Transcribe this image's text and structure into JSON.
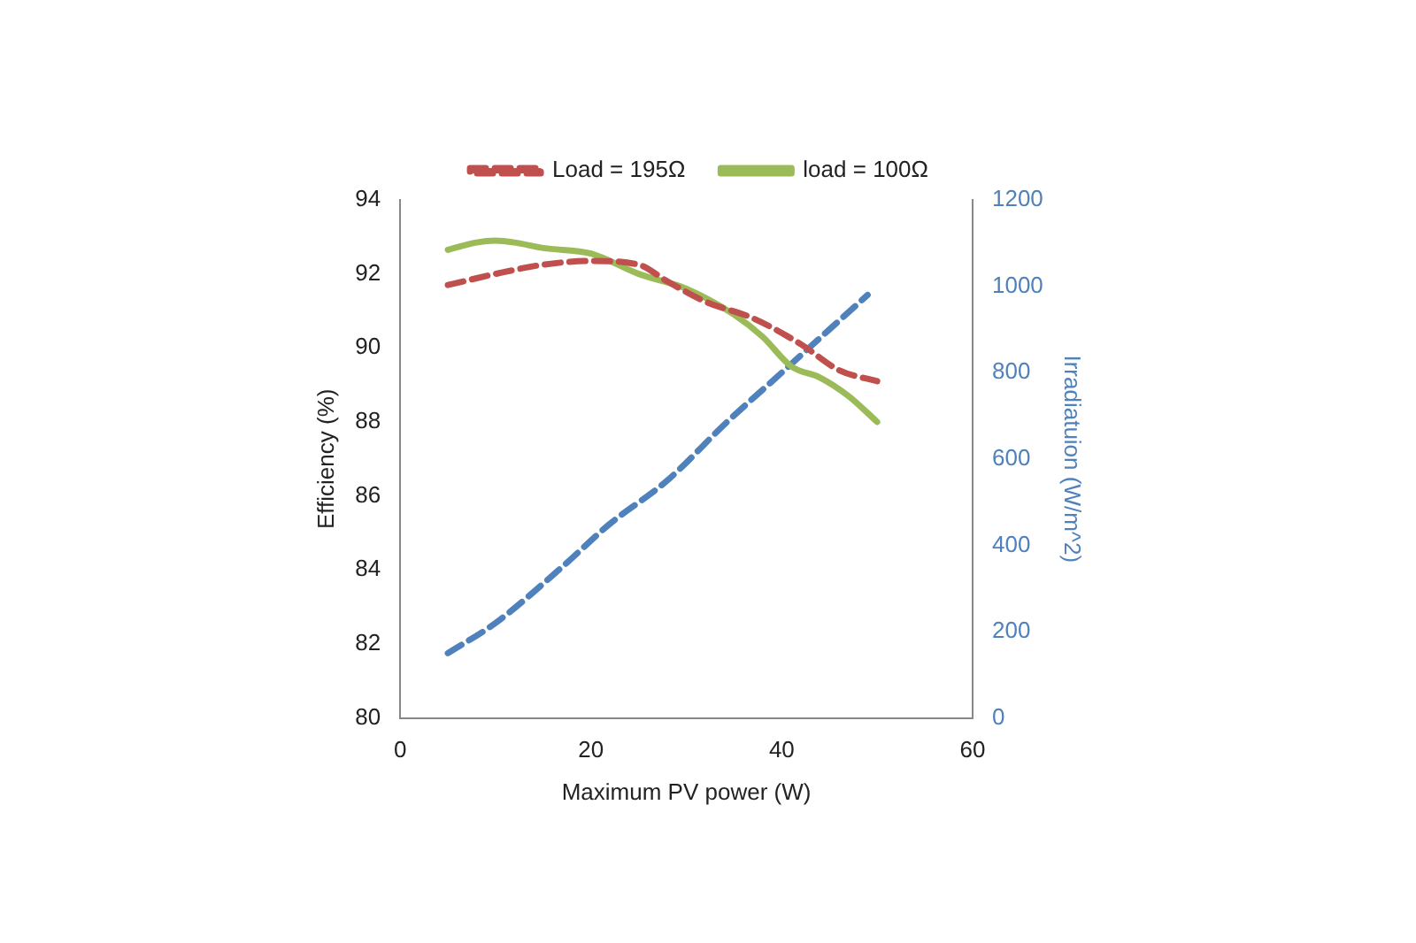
{
  "chart_data": {
    "type": "line",
    "xlabel": "Maximum PV power (W)",
    "ylabel": "Efficiency (%)",
    "y2label": "Irradiatuion (W/m^2)",
    "xlim": [
      0,
      60
    ],
    "xticks": [
      0,
      20,
      40,
      60
    ],
    "ylim": [
      80,
      94
    ],
    "yticks": [
      80,
      82,
      84,
      86,
      88,
      90,
      92,
      94
    ],
    "y2lim": [
      0,
      1200
    ],
    "y2ticks": [
      0,
      200,
      400,
      600,
      800,
      1000,
      1200
    ],
    "grid": false,
    "legend": "top",
    "marker": "none",
    "series": [
      {
        "name": "Load = 195Ω",
        "color": "#c0504d",
        "line_style": "dashed",
        "x": [
          5,
          10,
          15,
          20,
          25,
          28,
          32,
          37,
          42,
          46,
          50
        ],
        "values": [
          91.7,
          92.0,
          92.25,
          92.35,
          92.25,
          91.8,
          91.25,
          90.8,
          90.1,
          89.4,
          89.1
        ]
      },
      {
        "name": "load = 100Ω",
        "color": "#9bbb59",
        "line_style": "solid",
        "x": [
          5,
          8,
          10,
          12,
          15,
          20,
          25,
          30,
          35,
          38,
          41,
          44,
          47,
          50
        ],
        "values": [
          92.65,
          92.85,
          92.9,
          92.85,
          92.7,
          92.55,
          92.0,
          91.6,
          90.9,
          90.3,
          89.5,
          89.2,
          88.7,
          88.0
        ]
      },
      {
        "color": "#4f81bd",
        "line_style": "dashed",
        "axis": "y2",
        "x": [
          5,
          10,
          17,
          22,
          28,
          34,
          40,
          45,
          49
        ],
        "values": [
          150,
          220,
          350,
          450,
          550,
          680,
          800,
          900,
          980
        ]
      }
    ]
  }
}
